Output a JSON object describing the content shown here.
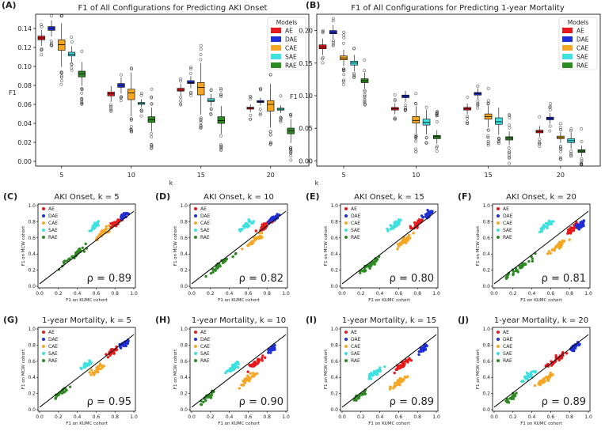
{
  "chart_data": [
    {
      "id": "A",
      "type": "box",
      "panel_label": "(A)",
      "title": "F1 of All Configurations for Predicting AKI Onset",
      "xlabel": "k",
      "ylabel": "F1",
      "categories": [
        "5",
        "10",
        "15",
        "20"
      ],
      "ylim": [
        -0.005,
        0.155
      ],
      "yticks": [
        "0.00",
        "0.02",
        "0.04",
        "0.06",
        "0.08",
        "0.10",
        "0.12",
        "0.14"
      ],
      "legend_title": "Models",
      "series": [
        {
          "name": "AE",
          "color": "#e41a1c",
          "median": [
            0.13,
            0.071,
            0.075,
            0.056
          ],
          "q1": [
            0.128,
            0.069,
            0.074,
            0.055
          ],
          "q3": [
            0.132,
            0.073,
            0.077,
            0.057
          ]
        },
        {
          "name": "DAE",
          "color": "#1f2fd6",
          "median": [
            0.14,
            0.08,
            0.083,
            0.063
          ],
          "q1": [
            0.138,
            0.078,
            0.082,
            0.062
          ],
          "q3": [
            0.142,
            0.082,
            0.085,
            0.064
          ]
        },
        {
          "name": "CAE",
          "color": "#f5a623",
          "median": [
            0.123,
            0.072,
            0.078,
            0.06
          ],
          "q1": [
            0.117,
            0.065,
            0.07,
            0.053
          ],
          "q3": [
            0.128,
            0.076,
            0.083,
            0.064
          ]
        },
        {
          "name": "SAE",
          "color": "#40e0e0",
          "median": [
            0.113,
            0.061,
            0.064,
            0.055
          ],
          "q1": [
            0.111,
            0.06,
            0.063,
            0.054
          ],
          "q3": [
            0.115,
            0.062,
            0.066,
            0.056
          ]
        },
        {
          "name": "RAE",
          "color": "#2e8b22",
          "median": [
            0.092,
            0.044,
            0.043,
            0.032
          ],
          "q1": [
            0.089,
            0.041,
            0.04,
            0.029
          ],
          "q3": [
            0.095,
            0.047,
            0.047,
            0.035
          ]
        }
      ]
    },
    {
      "id": "B",
      "type": "box",
      "panel_label": "(B)",
      "title": "F1 of All Configurations for Predicting 1-year Mortality",
      "xlabel": "k",
      "ylabel": "F1",
      "categories": [
        "5",
        "10",
        "15",
        "20"
      ],
      "ylim": [
        -0.008,
        0.225
      ],
      "yticks": [
        "0.00",
        "0.05",
        "0.10",
        "0.15",
        "0.20"
      ],
      "legend_title": "Models",
      "series": [
        {
          "name": "AE",
          "color": "#e41a1c",
          "median": [
            0.175,
            0.08,
            0.08,
            0.045
          ],
          "q1": [
            0.172,
            0.078,
            0.078,
            0.043
          ],
          "q3": [
            0.178,
            0.082,
            0.082,
            0.047
          ]
        },
        {
          "name": "DAE",
          "color": "#1f2fd6",
          "median": [
            0.197,
            0.099,
            0.103,
            0.065
          ],
          "q1": [
            0.195,
            0.097,
            0.101,
            0.063
          ],
          "q3": [
            0.2,
            0.101,
            0.105,
            0.067
          ]
        },
        {
          "name": "CAE",
          "color": "#f5a623",
          "median": [
            0.158,
            0.062,
            0.068,
            0.036
          ],
          "q1": [
            0.155,
            0.058,
            0.064,
            0.034
          ],
          "q3": [
            0.161,
            0.068,
            0.072,
            0.038
          ]
        },
        {
          "name": "SAE",
          "color": "#40e0e0",
          "median": [
            0.15,
            0.059,
            0.06,
            0.031
          ],
          "q1": [
            0.147,
            0.055,
            0.056,
            0.028
          ],
          "q3": [
            0.153,
            0.064,
            0.066,
            0.034
          ]
        },
        {
          "name": "RAE",
          "color": "#2e8b22",
          "median": [
            0.123,
            0.037,
            0.035,
            0.015
          ],
          "q1": [
            0.12,
            0.034,
            0.032,
            0.013
          ],
          "q3": [
            0.126,
            0.039,
            0.037,
            0.017
          ]
        }
      ]
    },
    {
      "id": "C",
      "type": "scatter",
      "panel_label": "(C)",
      "title": "AKI Onset, k = 5",
      "xlabel": "F1 on KUMC cohort",
      "ylabel": "F1 on MCW cohort",
      "rho": "ρ = 0.89",
      "xlim": [
        0,
        1
      ],
      "ylim": [
        0,
        1
      ],
      "ticks": [
        "0.0",
        "0.2",
        "0.4",
        "0.6",
        "0.8",
        "1.0"
      ],
      "legend": [
        "AE",
        "DAE",
        "CAE",
        "SAE",
        "RAE"
      ]
    },
    {
      "id": "D",
      "type": "scatter",
      "panel_label": "(D)",
      "title": "AKI Onset, k = 10",
      "xlabel": "F1 on KUMC cohort",
      "ylabel": "F1 on MCW cohort",
      "rho": "ρ = 0.82",
      "xlim": [
        0,
        1
      ],
      "ylim": [
        0,
        1
      ],
      "ticks": [
        "0.0",
        "0.2",
        "0.4",
        "0.6",
        "0.8",
        "1.0"
      ],
      "legend": [
        "AE",
        "DAE",
        "CAE",
        "SAE",
        "RAE"
      ]
    },
    {
      "id": "E",
      "type": "scatter",
      "panel_label": "(E)",
      "title": "AKI Onset, k = 15",
      "xlabel": "F1 on KUMC cohort",
      "ylabel": "F1 on MCW cohort",
      "rho": "ρ = 0.80",
      "xlim": [
        0,
        1
      ],
      "ylim": [
        0,
        1
      ],
      "ticks": [
        "0.0",
        "0.2",
        "0.4",
        "0.6",
        "0.8",
        "1.0"
      ],
      "legend": [
        "AE",
        "DAE",
        "CAE",
        "SAE",
        "RAE"
      ]
    },
    {
      "id": "F",
      "type": "scatter",
      "panel_label": "(F)",
      "title": "AKI Onset, k = 20",
      "xlabel": "F1 on KUMC cohort",
      "ylabel": "F1 on MCW cohort",
      "rho": "ρ = 0.81",
      "xlim": [
        0,
        1
      ],
      "ylim": [
        0,
        1
      ],
      "ticks": [
        "0.0",
        "0.2",
        "0.4",
        "0.6",
        "0.8",
        "1.0"
      ],
      "legend": [
        "AE",
        "DAE",
        "CAE",
        "SAE",
        "RAE"
      ]
    },
    {
      "id": "G",
      "type": "scatter",
      "panel_label": "(G)",
      "title": "1-year Mortality, k = 5",
      "xlabel": "F1 on KUMC cohort",
      "ylabel": "F1 on MCW cohort",
      "rho": "ρ = 0.95",
      "xlim": [
        0,
        1
      ],
      "ylim": [
        0,
        1
      ],
      "ticks": [
        "0.0",
        "0.2",
        "0.4",
        "0.6",
        "0.8",
        "1.0"
      ],
      "legend": [
        "AE",
        "DAE",
        "CAE",
        "SAE",
        "RAE"
      ]
    },
    {
      "id": "H",
      "type": "scatter",
      "panel_label": "(H)",
      "title": "1-year Mortality, k = 10",
      "xlabel": "F1 on KUMC cohort",
      "ylabel": "F1 on MCW cohort",
      "rho": "ρ = 0.90",
      "xlim": [
        0,
        1
      ],
      "ylim": [
        0,
        1
      ],
      "ticks": [
        "0.0",
        "0.2",
        "0.4",
        "0.6",
        "0.8",
        "1.0"
      ],
      "legend": [
        "AE",
        "DAE",
        "CAE",
        "SAE",
        "RAE"
      ]
    },
    {
      "id": "I",
      "type": "scatter",
      "panel_label": "(I)",
      "title": "1-year Mortality, k = 15",
      "xlabel": "F1 on KUMC cohort",
      "ylabel": "F1 on MCW cohort",
      "rho": "ρ = 0.89",
      "xlim": [
        0,
        1
      ],
      "ylim": [
        0,
        1
      ],
      "ticks": [
        "0.0",
        "0.2",
        "0.4",
        "0.6",
        "0.8",
        "1.0"
      ],
      "legend": [
        "AE",
        "DAE",
        "CAE",
        "SAE",
        "RAE"
      ]
    },
    {
      "id": "J",
      "type": "scatter",
      "panel_label": "(J)",
      "title": "1-year Mortality, k = 20",
      "xlabel": "F1 on KUMC cohort",
      "ylabel": "F1 on MCW cohort",
      "rho": "ρ = 0.89",
      "xlim": [
        0,
        1
      ],
      "ylim": [
        0,
        1
      ],
      "ticks": [
        "0.0",
        "0.2",
        "0.4",
        "0.6",
        "0.8",
        "1.0"
      ],
      "legend": [
        "AE",
        "DAE",
        "CAE",
        "SAE",
        "RAE"
      ]
    }
  ],
  "colors": {
    "AE": "#e41a1c",
    "DAE": "#1f2fd6",
    "CAE": "#f5a623",
    "SAE": "#40e0e0",
    "RAE": "#2e8b22"
  }
}
